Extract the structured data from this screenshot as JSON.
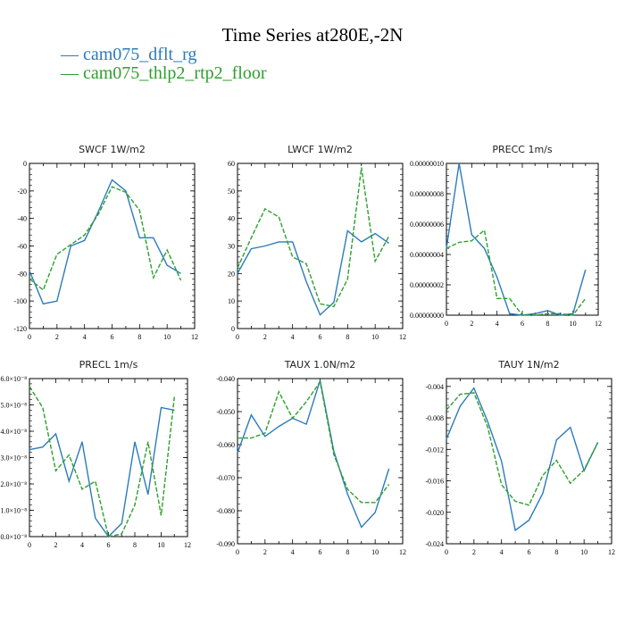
{
  "figure": {
    "title": "Time Series at280E,-2N",
    "legend": [
      {
        "label": "cam075_dflt_rg",
        "color": "#2b7bba",
        "dash": "solid"
      },
      {
        "label": "cam075_thlp2_rtp2_floor",
        "color": "#2ca02c",
        "dash": "dashed"
      }
    ]
  },
  "chart_data": [
    {
      "type": "line",
      "title": "SWCF   1W/m2",
      "x": [
        0,
        1,
        2,
        3,
        4,
        5,
        6,
        7,
        8,
        9,
        10,
        11
      ],
      "xlim": [
        0,
        12
      ],
      "xticks": [
        "0",
        "2",
        "4",
        "6",
        "8",
        "10",
        "12"
      ],
      "ylim": [
        -120,
        0
      ],
      "yticks": [
        "0",
        "-20",
        "-40",
        "-60",
        "-80",
        "-100",
        "-120"
      ],
      "series": [
        {
          "name": "cam075_dflt_rg",
          "values": [
            -78,
            -102,
            -100,
            -60,
            -56,
            -35,
            -12,
            -20,
            -54,
            -54,
            -74,
            -80
          ]
        },
        {
          "name": "cam075_thlp2_rtp2_floor",
          "values": [
            -84,
            -92,
            -66,
            -59,
            -52,
            -37,
            -17,
            -21,
            -34,
            -83,
            -63,
            -85
          ]
        }
      ]
    },
    {
      "type": "line",
      "title": "LWCF   1W/m2",
      "x": [
        0,
        1,
        2,
        3,
        4,
        5,
        6,
        7,
        8,
        9,
        10,
        11
      ],
      "xlim": [
        0,
        12
      ],
      "xticks": [
        "0",
        "2",
        "4",
        "6",
        "8",
        "10",
        "12"
      ],
      "ylim": [
        0,
        60
      ],
      "yticks": [
        "0",
        "10",
        "20",
        "30",
        "40",
        "50",
        "60"
      ],
      "series": [
        {
          "name": "cam075_dflt_rg",
          "values": [
            20,
            29,
            30,
            31.5,
            31.5,
            17,
            5,
            9.5,
            35.5,
            31.5,
            34.5,
            31
          ]
        },
        {
          "name": "cam075_thlp2_rtp2_floor",
          "values": [
            22,
            33,
            43.5,
            40.5,
            26,
            23.5,
            9,
            8,
            18,
            58.5,
            24.5,
            33.5
          ]
        }
      ]
    },
    {
      "type": "line",
      "title": "PRECC   1m/s",
      "x": [
        0,
        1,
        2,
        3,
        4,
        5,
        6,
        7,
        8,
        9,
        10,
        11
      ],
      "xlim": [
        0,
        12
      ],
      "xticks": [
        "0",
        "2",
        "4",
        "6",
        "8",
        "10",
        "12"
      ],
      "ylim": [
        0,
        1e-07
      ],
      "yticks": [
        "0.00000000",
        "0.00000002",
        "0.00000004",
        "0.00000006",
        "0.00000008",
        "0.00000010"
      ],
      "series": [
        {
          "name": "cam075_dflt_rg",
          "values": [
            4.4e-08,
            1e-07,
            5.3e-08,
            4.4e-08,
            2.5e-08,
            1e-09,
            0,
            1e-09,
            3e-09,
            0,
            1e-09,
            3e-08
          ]
        },
        {
          "name": "cam075_thlp2_rtp2_floor",
          "values": [
            4.4e-08,
            4.8e-08,
            4.9e-08,
            5.6e-08,
            1.1e-08,
            1.1e-08,
            0,
            0,
            1e-09,
            1e-09,
            0,
            1.1e-08
          ]
        }
      ]
    },
    {
      "type": "line",
      "title": "PRECL   1m/s",
      "x": [
        0,
        1,
        2,
        3,
        4,
        5,
        6,
        7,
        8,
        9,
        10,
        11
      ],
      "xlim": [
        0,
        12
      ],
      "xticks": [
        "0",
        "2",
        "4",
        "6",
        "8",
        "10",
        "12"
      ],
      "ylim": [
        0,
        6e-08
      ],
      "yticks": [
        "0.0×10⁻⁸",
        "1.0×10⁻⁸",
        "2.0×10⁻⁸",
        "3.0×10⁻⁸",
        "4.0×10⁻⁸",
        "5.0×10⁻⁸",
        "6.0×10⁻⁸"
      ],
      "series": [
        {
          "name": "cam075_dflt_rg",
          "values": [
            3.3e-08,
            3.4e-08,
            3.9e-08,
            2.1e-08,
            3.6e-08,
            7e-09,
            0,
            5e-09,
            3.6e-08,
            1.6e-08,
            4.9e-08,
            4.8e-08
          ]
        },
        {
          "name": "cam075_thlp2_rtp2_floor",
          "values": [
            5.7e-08,
            4.9e-08,
            2.5e-08,
            3.1e-08,
            1.8e-08,
            2.1e-08,
            0,
            1e-09,
            1.2e-08,
            3.6e-08,
            8e-09,
            5.3e-08
          ]
        }
      ]
    },
    {
      "type": "line",
      "title": "TAUX   1.0N/m2",
      "x": [
        0,
        1,
        2,
        3,
        4,
        5,
        6,
        7,
        8,
        9,
        10,
        11
      ],
      "xlim": [
        0,
        12
      ],
      "xticks": [
        "0",
        "2",
        "4",
        "6",
        "8",
        "10",
        "12"
      ],
      "ylim": [
        -0.09,
        -0.04
      ],
      "yticks": [
        "-0.040",
        "-0.050",
        "-0.060",
        "-0.070",
        "-0.080",
        "-0.090"
      ],
      "series": [
        {
          "name": "cam075_dflt_rg",
          "values": [
            -0.0625,
            -0.051,
            -0.0575,
            -0.0545,
            -0.052,
            -0.0538,
            -0.0405,
            -0.062,
            -0.075,
            -0.085,
            -0.0805,
            -0.0673
          ]
        },
        {
          "name": "cam075_thlp2_rtp2_floor",
          "values": [
            -0.058,
            -0.058,
            -0.0565,
            -0.044,
            -0.052,
            -0.047,
            -0.041,
            -0.063,
            -0.0735,
            -0.0775,
            -0.0775,
            -0.072
          ]
        }
      ]
    },
    {
      "type": "line",
      "title": "TAUY   1N/m2",
      "x": [
        0,
        1,
        2,
        3,
        4,
        5,
        6,
        7,
        8,
        9,
        10,
        11
      ],
      "xlim": [
        0,
        12
      ],
      "xticks": [
        "0",
        "2",
        "4",
        "6",
        "8",
        "10",
        "12"
      ],
      "ylim": [
        -0.024,
        -0.003
      ],
      "yticks": [
        "-0.004",
        "-0.008",
        "-0.012",
        "-0.016",
        "-0.020",
        "-0.024"
      ],
      "series": [
        {
          "name": "cam075_dflt_rg",
          "values": [
            -0.0107,
            -0.0065,
            -0.0042,
            -0.0085,
            -0.0135,
            -0.0223,
            -0.021,
            -0.0176,
            -0.0108,
            -0.0092,
            -0.0147,
            -0.0111
          ]
        },
        {
          "name": "cam075_thlp2_rtp2_floor",
          "values": [
            -0.007,
            -0.005,
            -0.0048,
            -0.0092,
            -0.0165,
            -0.0186,
            -0.0191,
            -0.0153,
            -0.0134,
            -0.0163,
            -0.0146,
            -0.0111
          ]
        }
      ]
    }
  ]
}
